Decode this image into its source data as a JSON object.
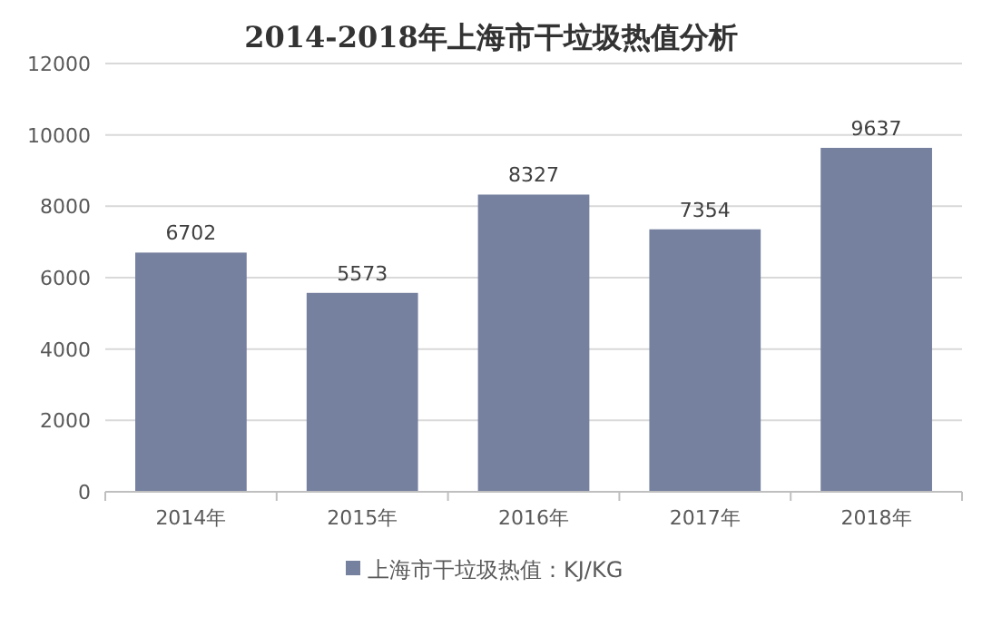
{
  "chart_data": {
    "type": "bar",
    "title": "2014-2018年上海市干垃圾热值分析",
    "categories": [
      "2014年",
      "2015年",
      "2016年",
      "2017年",
      "2018年"
    ],
    "series": [
      {
        "name": "上海市干垃圾热值：KJ/KG",
        "color": "#76809f",
        "values": [
          6702,
          5573,
          8327,
          7354,
          9637
        ]
      }
    ],
    "ylim": [
      0,
      12000
    ],
    "yticks": [
      0,
      2000,
      4000,
      6000,
      8000,
      10000,
      12000
    ],
    "grid": "y",
    "legend": "bottom",
    "data_labels": true
  }
}
